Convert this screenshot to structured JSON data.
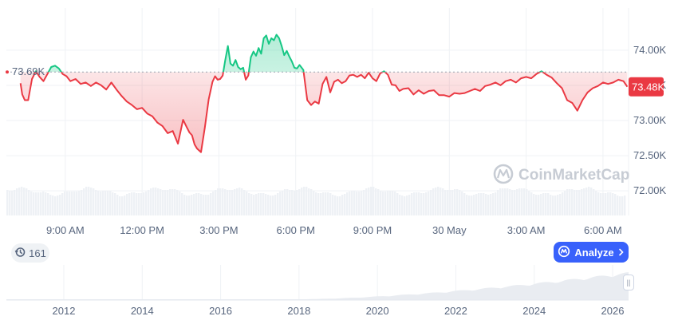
{
  "chart_data": {
    "type": "line",
    "reference_value": 73690,
    "reference_label": "73.69K",
    "current_value": 73480,
    "current_label": "73.48K",
    "ylim": [
      71650,
      74600
    ],
    "y_ticks": [
      72000,
      72500,
      73000,
      73500,
      74000
    ],
    "y_tick_labels": [
      "72.00K",
      "72.50K",
      "73.00K",
      "73.50K",
      "74.00K"
    ],
    "time_range_hours": [
      6.7,
      31.0
    ],
    "x_ticks": [
      9,
      12,
      15,
      18,
      21,
      24,
      27,
      30
    ],
    "x_tick_labels": [
      "9:00 AM",
      "12:00 PM",
      "3:00 PM",
      "6:00 PM",
      "9:00 PM",
      "30 May",
      "3:00 AM",
      "6:00 AM"
    ],
    "series": [
      {
        "x": [
          7.25,
          7.32,
          7.42,
          7.55,
          7.7,
          7.85,
          8.0,
          8.15,
          8.3,
          8.45,
          8.6,
          8.75,
          8.9,
          9.05,
          9.2,
          9.4,
          9.6,
          9.8,
          10.0,
          10.2,
          10.4,
          10.6,
          10.8,
          11.0,
          11.2,
          11.4,
          11.6,
          11.8,
          12.0,
          12.2,
          12.4,
          12.6,
          12.8,
          13.0,
          13.2,
          13.4,
          13.6,
          13.75,
          13.85,
          13.95,
          14.05,
          14.15,
          14.3,
          14.45,
          14.6,
          14.75,
          14.85,
          14.95,
          15.05,
          15.15,
          15.25,
          15.35,
          15.45,
          15.55,
          15.65,
          15.75,
          15.85,
          15.95,
          16.05,
          16.15,
          16.25,
          16.35,
          16.45,
          16.55,
          16.65,
          16.75,
          16.85,
          16.95,
          17.05,
          17.15,
          17.25,
          17.35,
          17.45,
          17.55,
          17.65,
          17.75,
          17.85,
          17.95,
          18.05,
          18.15,
          18.3,
          18.45,
          18.6,
          18.75,
          18.9,
          19.05,
          19.2,
          19.35,
          19.5,
          19.65,
          19.8,
          19.95,
          20.1,
          20.25,
          20.4,
          20.55,
          20.7,
          20.85,
          21.0,
          21.15,
          21.3,
          21.45,
          21.6,
          21.75,
          21.9,
          22.05,
          22.2,
          22.4,
          22.6,
          22.8,
          23.0,
          23.2,
          23.4,
          23.6,
          23.8,
          24.0,
          24.2,
          24.4,
          24.6,
          24.8,
          25.0,
          25.2,
          25.4,
          25.6,
          25.8,
          26.0,
          26.2,
          26.4,
          26.6,
          26.8,
          27.0,
          27.2,
          27.4,
          27.6,
          27.8,
          28.0,
          28.2,
          28.4,
          28.6,
          28.8,
          29.0,
          29.2,
          29.4,
          29.6,
          29.8,
          30.0,
          30.2,
          30.4,
          30.6,
          30.8,
          30.95
        ],
        "y": [
          73530,
          73370,
          73290,
          73290,
          73590,
          73700,
          73620,
          73560,
          73660,
          73760,
          73780,
          73740,
          73660,
          73630,
          73560,
          73590,
          73520,
          73540,
          73490,
          73540,
          73500,
          73440,
          73540,
          73440,
          73350,
          73270,
          73220,
          73160,
          73180,
          73100,
          73060,
          72970,
          72920,
          72820,
          72850,
          72670,
          73010,
          72900,
          72830,
          72790,
          72660,
          72600,
          72550,
          72900,
          73300,
          73550,
          73630,
          73580,
          73590,
          73640,
          73860,
          74060,
          73810,
          73780,
          73860,
          73760,
          73730,
          73750,
          73580,
          73640,
          73900,
          73980,
          73920,
          74030,
          73950,
          74170,
          74210,
          74090,
          74170,
          74140,
          74220,
          74170,
          74060,
          73930,
          73990,
          73910,
          73840,
          73750,
          73740,
          73790,
          73720,
          73290,
          73220,
          73270,
          73240,
          73520,
          73620,
          73400,
          73550,
          73580,
          73530,
          73560,
          73640,
          73650,
          73620,
          73650,
          73600,
          73680,
          73600,
          73560,
          73670,
          73700,
          73650,
          73510,
          73500,
          73420,
          73450,
          73460,
          73370,
          73430,
          73380,
          73420,
          73430,
          73360,
          73360,
          73340,
          73390,
          73380,
          73390,
          73420,
          73450,
          73420,
          73490,
          73510,
          73540,
          73500,
          73560,
          73580,
          73540,
          73600,
          73620,
          73600,
          73660,
          73700,
          73650,
          73610,
          73530,
          73460,
          73290,
          73250,
          73140,
          73290,
          73400,
          73460,
          73490,
          73540,
          73520,
          73540,
          73580,
          73560,
          73480
        ]
      }
    ],
    "navigator": {
      "year_ticks": [
        "2012",
        "2014",
        "2016",
        "2018",
        "2020",
        "2022",
        "2024",
        "2026"
      ]
    }
  },
  "ui": {
    "watermark": "CoinMarketCap",
    "history_count": "161",
    "analyze_label": "Analyze",
    "colors": {
      "up": "#16c784",
      "down": "#ea3943",
      "up_fill": "#16c784",
      "down_fill": "#ea3943",
      "accent": "#3861fb",
      "grid": "#eff2f5"
    }
  }
}
